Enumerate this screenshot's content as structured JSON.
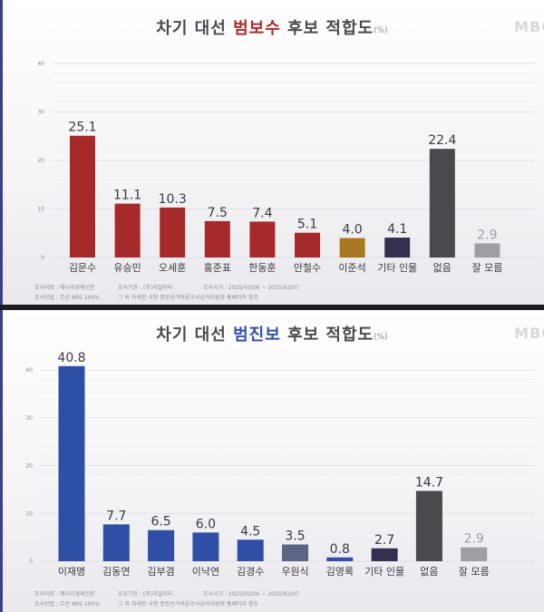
{
  "panels": [
    {
      "title_pre": "차기 대선 ",
      "title_accent": "범보수",
      "title_post": " 후보 적합도",
      "title_unit": "(%)",
      "logo": "MBC",
      "footer": {
        "row1": [
          "조사의뢰 : 에너지경제신문",
          "조사기관 : (주)리얼미터",
          "조사시기 : 2025/02/06 ~ 2025/02/07"
        ],
        "row2": [
          "조사방법 : 무선 ARS 100%",
          "그 외 자세한 사항 중앙선거여론조사심의위원회 홈페이지 참조"
        ]
      }
    },
    {
      "title_pre": "차기 대선 ",
      "title_accent": "범진보",
      "title_post": " 후보 적합도",
      "title_unit": "(%)",
      "logo": "MBC",
      "footer": {
        "row1": [
          "조사의뢰 : 에너지경제신문",
          "조사기관 : (주)리얼미터",
          "조사시기 : 2025/02/06 ~ 2025/02/07"
        ],
        "row2": [
          "조사방법 : 무선 ARS 100%",
          "그 외 자세한 사항 중앙선거여론조사심의위원회 홈페이지 참조"
        ]
      }
    }
  ],
  "chart_data": [
    {
      "type": "bar",
      "title": "차기 대선 범보수 후보 적합도",
      "unit": "(%)",
      "ylim": [
        0,
        40
      ],
      "yticks": [
        "0",
        "10",
        "20",
        "30",
        "40"
      ],
      "grid": true,
      "categories": [
        "김문수",
        "유승민",
        "오세훈",
        "홍준표",
        "한동훈",
        "안철수",
        "이준석",
        "기타 인물",
        "없음",
        "잘 모름"
      ],
      "value_labels": [
        "25.1",
        "11.1",
        "10.3",
        "7.5",
        "7.4",
        "5.1",
        "4.0",
        "4.1",
        "22.4",
        "2.9"
      ],
      "values": [
        25.1,
        11.1,
        10.3,
        7.5,
        7.4,
        5.1,
        4.0,
        4.1,
        22.4,
        2.9
      ],
      "colors": [
        "#a62a2a",
        "#a62a2a",
        "#a62a2a",
        "#a62a2a",
        "#a62a2a",
        "#a62a2a",
        "#a9771f",
        "#35304f",
        "#4a4a4e",
        "#9e9ea4"
      ]
    },
    {
      "type": "bar",
      "title": "차기 대선 범진보 후보 적합도",
      "unit": "(%)",
      "ylim": [
        0,
        40
      ],
      "yticks": [
        "0",
        "10",
        "20",
        "30",
        "40"
      ],
      "grid": true,
      "categories": [
        "이재명",
        "김동연",
        "김부겸",
        "이낙연",
        "김경수",
        "우원식",
        "김영록",
        "기타 인물",
        "없음",
        "잘 모름"
      ],
      "value_labels": [
        "40.8",
        "7.7",
        "6.5",
        "6.0",
        "4.5",
        "3.5",
        "0.8",
        "2.7",
        "14.7",
        "2.9"
      ],
      "values": [
        40.8,
        7.7,
        6.5,
        6.0,
        4.5,
        3.5,
        0.8,
        2.7,
        14.7,
        2.9
      ],
      "colors": [
        "#2f4fa6",
        "#2f4fa6",
        "#2f4fa6",
        "#2f4fa6",
        "#2f4fa6",
        "#5b6684",
        "#2f4fa6",
        "#35304f",
        "#4a4a4e",
        "#9e9ea4"
      ]
    }
  ]
}
